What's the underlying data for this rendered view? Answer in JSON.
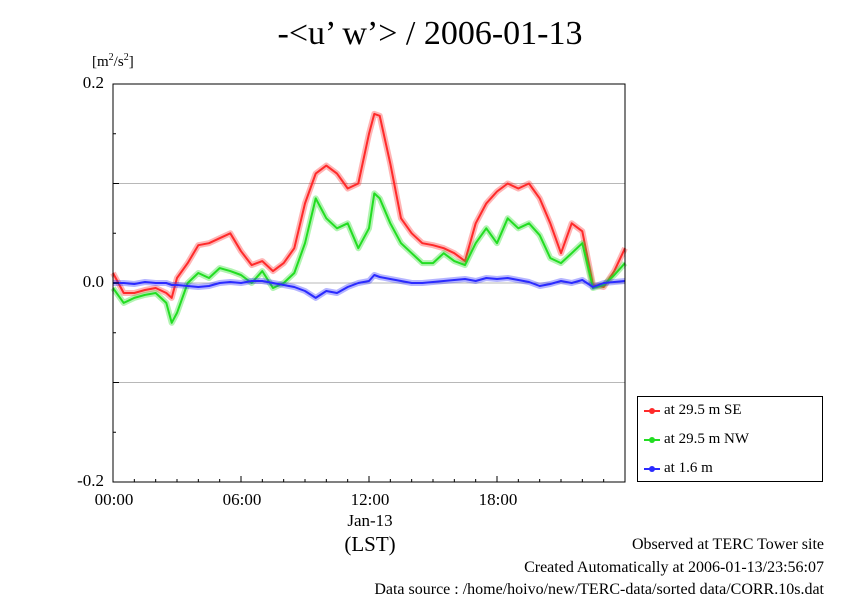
{
  "title": "-<u’ w’> / 2006-01-13",
  "unit_label": {
    "prefix": "[m",
    "sup1": "2",
    "mid": "/s",
    "sup2": "2",
    "suffix": "]"
  },
  "x_axis": {
    "tick_labels": [
      "00:00",
      "06:00",
      "12:00",
      "18:00"
    ],
    "date_label": "Jan-13",
    "label": "(LST)"
  },
  "y_axis": {
    "tick_labels": [
      "0.2",
      "0.0",
      "-0.2"
    ]
  },
  "legend": [
    {
      "label": "at 29.5 m SE",
      "color": "#ff2a2a"
    },
    {
      "label": "at 29.5 m NW",
      "color": "#22dd22"
    },
    {
      "label": "at 1.6 m",
      "color": "#2a2aff"
    }
  ],
  "footer": {
    "line1": "Observed at TERC Tower site",
    "line2": "Created Automatically at 2006-01-13/23:56:07",
    "line3": "Data source : /home/hoivo/new/TERC-data/sorted  data/CORR.10s.dat"
  },
  "chart_data": {
    "type": "line",
    "title": "-<u’ w’> / 2006-01-13",
    "xlabel": "(LST)",
    "ylabel": "[m2/s2]",
    "xlim": [
      0,
      24
    ],
    "ylim": [
      -0.2,
      0.2
    ],
    "y_ticks": [
      -0.2,
      -0.1,
      0.0,
      0.1,
      0.2
    ],
    "x_ticks": [
      0,
      6,
      12,
      18
    ],
    "grid": "horizontal",
    "legend_position": "bottom-right",
    "x": [
      0,
      0.5,
      1,
      1.5,
      2,
      2.5,
      2.75,
      3,
      3.5,
      4,
      4.5,
      5,
      5.5,
      6,
      6.5,
      7,
      7.5,
      8,
      8.5,
      9,
      9.5,
      10,
      10.5,
      11,
      11.5,
      12,
      12.25,
      12.5,
      13,
      13.5,
      14,
      14.5,
      15,
      15.5,
      16,
      16.5,
      17,
      17.5,
      18,
      18.5,
      19,
      19.5,
      20,
      20.5,
      21,
      21.5,
      22,
      22.5,
      23,
      23.5,
      24
    ],
    "series": [
      {
        "name": "at 29.5 m SE",
        "color": "#ff2a2a",
        "values": [
          0.01,
          -0.01,
          -0.01,
          -0.007,
          -0.005,
          -0.01,
          -0.015,
          0.005,
          0.02,
          0.038,
          0.04,
          0.045,
          0.05,
          0.032,
          0.018,
          0.022,
          0.012,
          0.02,
          0.035,
          0.08,
          0.11,
          0.118,
          0.11,
          0.095,
          0.1,
          0.15,
          0.17,
          0.168,
          0.12,
          0.065,
          0.05,
          0.04,
          0.038,
          0.035,
          0.03,
          0.022,
          0.06,
          0.08,
          0.092,
          0.1,
          0.095,
          0.1,
          0.085,
          0.06,
          0.03,
          0.06,
          0.052,
          -0.002,
          -0.004,
          0.012,
          0.035
        ]
      },
      {
        "name": "at 29.5 m NW",
        "color": "#22dd22",
        "values": [
          -0.005,
          -0.02,
          -0.015,
          -0.012,
          -0.01,
          -0.02,
          -0.04,
          -0.03,
          0.0,
          0.01,
          0.005,
          0.015,
          0.012,
          0.008,
          0.0,
          0.012,
          -0.005,
          0.0,
          0.01,
          0.04,
          0.085,
          0.065,
          0.055,
          0.06,
          0.035,
          0.055,
          0.09,
          0.085,
          0.06,
          0.04,
          0.03,
          0.02,
          0.02,
          0.03,
          0.022,
          0.018,
          0.04,
          0.055,
          0.04,
          0.065,
          0.055,
          0.06,
          0.048,
          0.025,
          0.02,
          0.03,
          0.04,
          -0.005,
          -0.002,
          0.008,
          0.02
        ]
      },
      {
        "name": "at 1.6 m",
        "color": "#2a2aff",
        "values": [
          0.0,
          0.0,
          -0.001,
          0.001,
          0.0,
          0.0,
          -0.002,
          -0.002,
          -0.003,
          -0.004,
          -0.003,
          0.0,
          0.001,
          0.0,
          0.002,
          0.002,
          0.0,
          -0.002,
          -0.004,
          -0.008,
          -0.015,
          -0.008,
          -0.01,
          -0.004,
          0.0,
          0.002,
          0.008,
          0.006,
          0.004,
          0.002,
          0.0,
          0.0,
          0.001,
          0.002,
          0.003,
          0.004,
          0.002,
          0.005,
          0.004,
          0.005,
          0.003,
          0.001,
          -0.003,
          -0.001,
          0.002,
          0.0,
          0.003,
          -0.004,
          0.0,
          0.001,
          0.002
        ]
      }
    ]
  }
}
